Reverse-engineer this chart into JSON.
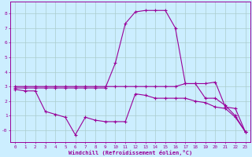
{
  "xlabel": "Windchill (Refroidissement éolien,°C)",
  "background_color": "#cceeff",
  "line_color": "#990099",
  "grid_color": "#aacccc",
  "x_hours": [
    0,
    1,
    2,
    3,
    4,
    5,
    6,
    7,
    8,
    9,
    10,
    11,
    12,
    13,
    14,
    15,
    16,
    17,
    18,
    19,
    20,
    21,
    22,
    23
  ],
  "series1": [
    3.0,
    3.0,
    3.0,
    3.0,
    3.0,
    3.0,
    3.0,
    3.0,
    3.0,
    3.0,
    3.0,
    3.0,
    3.0,
    3.0,
    3.0,
    3.0,
    3.0,
    3.2,
    3.2,
    2.2,
    2.2,
    1.7,
    1.0,
    -0.1
  ],
  "series2": [
    2.8,
    2.7,
    2.7,
    1.3,
    1.1,
    0.9,
    -0.3,
    0.9,
    0.7,
    0.6,
    0.6,
    0.6,
    2.5,
    2.4,
    2.2,
    2.2,
    2.2,
    2.2,
    2.0,
    1.9,
    1.6,
    1.5,
    0.9,
    -0.1
  ],
  "series3": [
    2.9,
    2.9,
    2.9,
    2.9,
    2.9,
    2.9,
    2.9,
    2.9,
    2.9,
    2.9,
    4.6,
    7.3,
    8.1,
    8.2,
    8.2,
    8.2,
    7.0,
    3.2,
    3.2,
    3.2,
    3.3,
    1.6,
    1.5,
    -0.1
  ],
  "ylim": [
    -0.8,
    8.8
  ],
  "xlim": [
    -0.5,
    23.5
  ],
  "yticks": [
    0,
    1,
    2,
    3,
    4,
    5,
    6,
    7,
    8
  ],
  "ytick_labels": [
    "-0",
    "1",
    "2",
    "3",
    "4",
    "5",
    "6",
    "7",
    "8"
  ],
  "xticks": [
    0,
    1,
    2,
    3,
    4,
    5,
    6,
    7,
    8,
    9,
    10,
    11,
    12,
    13,
    14,
    15,
    16,
    17,
    18,
    19,
    20,
    21,
    22,
    23
  ]
}
